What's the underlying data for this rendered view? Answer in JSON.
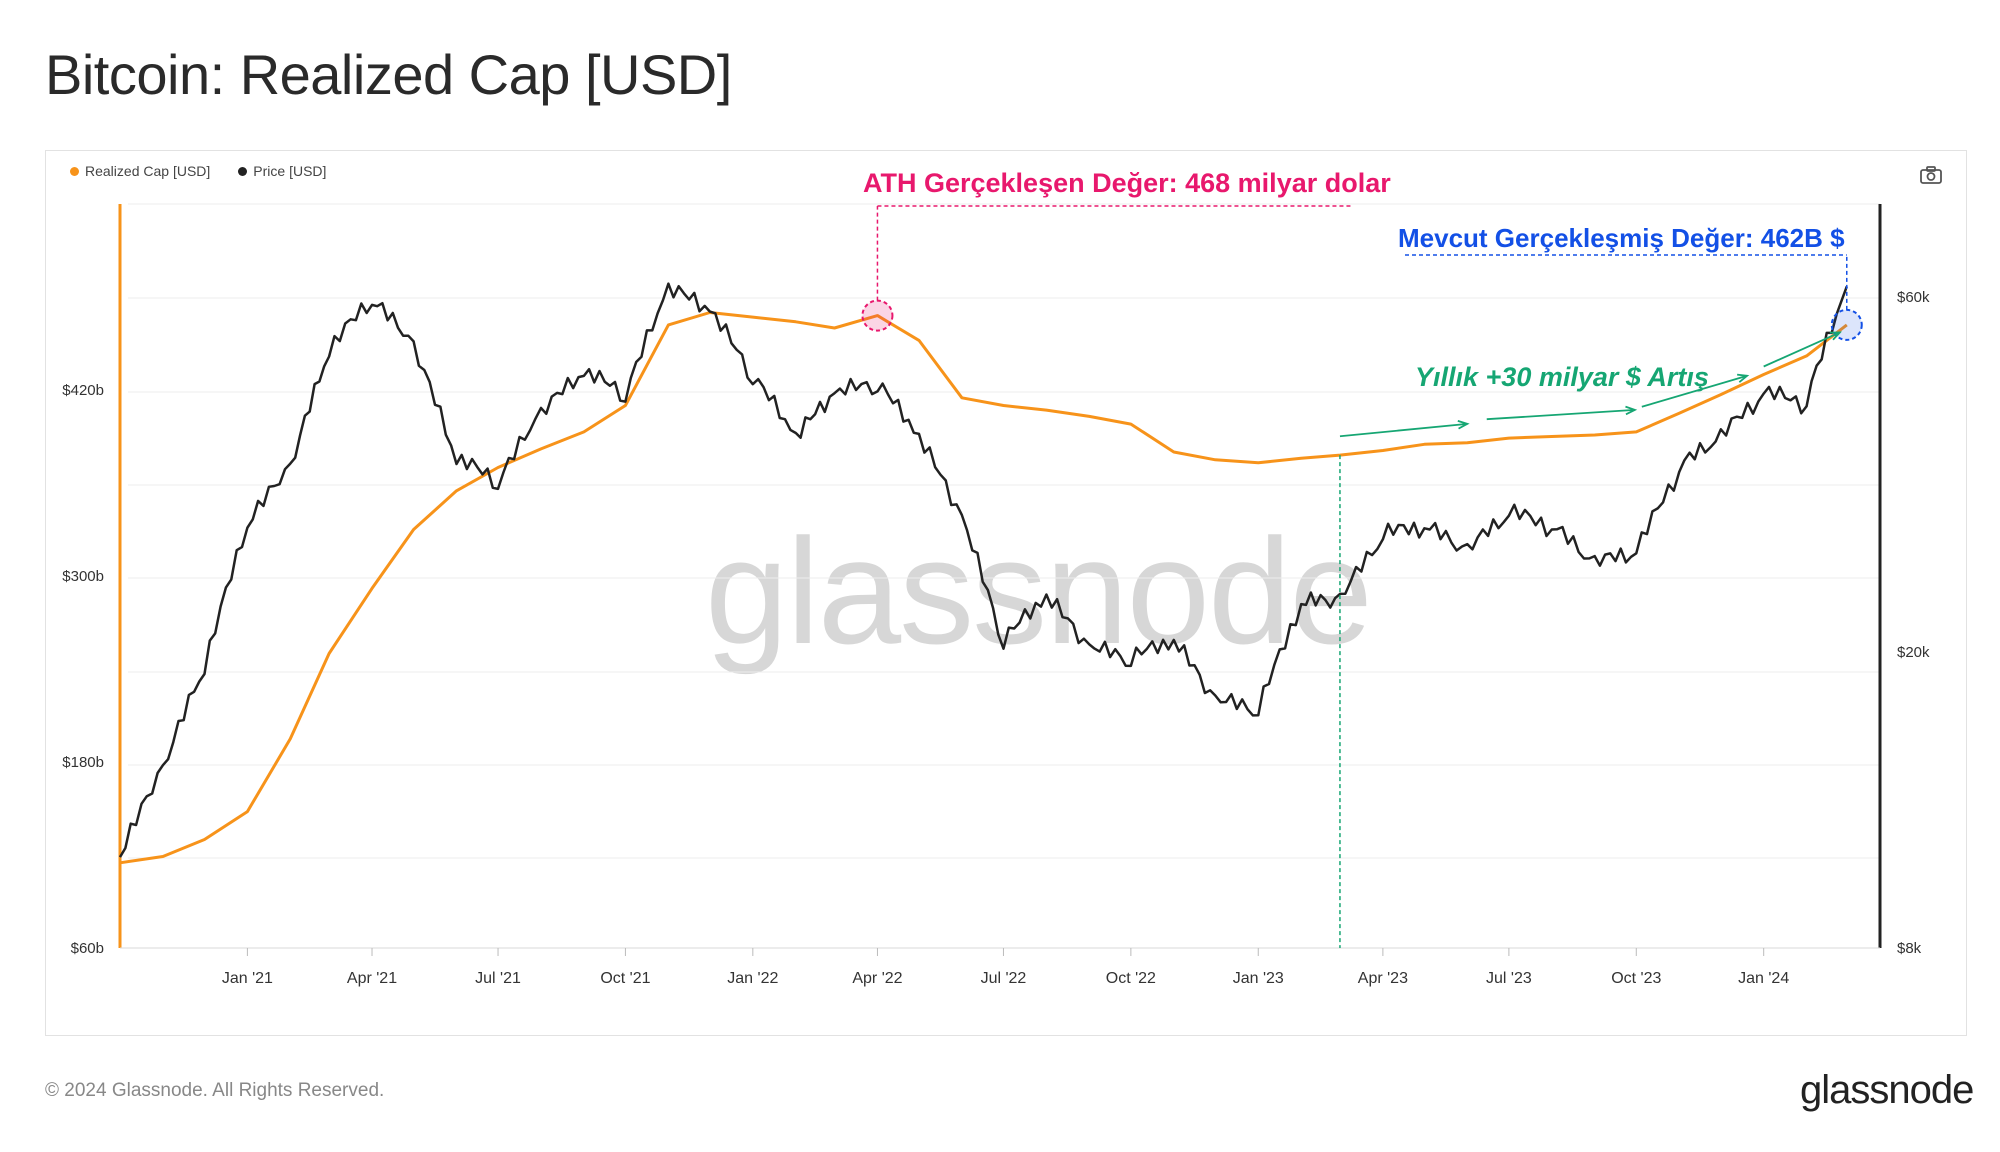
{
  "page": {
    "title": "Bitcoin: Realized Cap [USD]"
  },
  "legend": {
    "items": [
      {
        "label": "Realized Cap [USD]",
        "color": "#f7931a"
      },
      {
        "label": "Price [USD]",
        "color": "#222222"
      }
    ]
  },
  "toolbar": {
    "icon": "camera-icon"
  },
  "watermark": "glassnode",
  "annotations": {
    "ath": "ATH Gerçekleşen Değer: 468 milyar dolar",
    "current": "Mevcut Gerçekleşmiş Değer: 462B $",
    "growth": "Yıllık +30 milyar $ Artış"
  },
  "footer": {
    "copyright": "© 2024 Glassnode. All Rights Reserved.",
    "brand": "glassnode"
  },
  "colors": {
    "realized": "#f7931a",
    "price": "#222222",
    "ath": "#e8186d",
    "current": "#1350e6",
    "growth": "#16a673"
  },
  "chart_data": {
    "type": "line",
    "title": "Bitcoin: Realized Cap [USD]",
    "x_ticks": [
      "Jan '21",
      "Apr '21",
      "Jul '21",
      "Oct '21",
      "Jan '22",
      "Apr '22",
      "Jul '22",
      "Oct '22",
      "Jan '23",
      "Apr '23",
      "Jul '23",
      "Oct '23",
      "Jan '24"
    ],
    "x_tick_dates": [
      "2021-01-01",
      "2021-04-01",
      "2021-07-01",
      "2021-10-01",
      "2022-01-01",
      "2022-04-01",
      "2022-07-01",
      "2022-10-01",
      "2023-01-01",
      "2023-04-01",
      "2023-07-01",
      "2023-10-01",
      "2024-01-01"
    ],
    "x_range": [
      "2020-10-01",
      "2024-03-25"
    ],
    "left_axis": {
      "ticks": [
        "$60b",
        "$180b",
        "$300b",
        "$420b"
      ],
      "values": [
        60,
        180,
        300,
        420
      ],
      "range": [
        60,
        540
      ],
      "unit": "billion USD"
    },
    "right_axis": {
      "ticks": [
        "$8k",
        "$20k",
        "$60k"
      ],
      "values": [
        8000,
        20000,
        60000
      ],
      "range": [
        8000,
        80000
      ],
      "scale": "log"
    },
    "series": [
      {
        "name": "Realized Cap [USD]",
        "axis": "left",
        "color": "#f7931a",
        "points": [
          [
            "2020-10-01",
            115
          ],
          [
            "2020-11-01",
            119
          ],
          [
            "2020-12-01",
            130
          ],
          [
            "2021-01-01",
            148
          ],
          [
            "2021-02-01",
            195
          ],
          [
            "2021-03-01",
            250
          ],
          [
            "2021-04-01",
            292
          ],
          [
            "2021-05-01",
            330
          ],
          [
            "2021-06-01",
            355
          ],
          [
            "2021-07-01",
            370
          ],
          [
            "2021-08-01",
            382
          ],
          [
            "2021-09-01",
            393
          ],
          [
            "2021-10-01",
            410
          ],
          [
            "2021-11-01",
            462
          ],
          [
            "2021-12-01",
            470
          ],
          [
            "2022-01-01",
            467
          ],
          [
            "2022-02-01",
            464
          ],
          [
            "2022-03-01",
            460
          ],
          [
            "2022-04-01",
            468
          ],
          [
            "2022-05-01",
            452
          ],
          [
            "2022-06-01",
            415
          ],
          [
            "2022-07-01",
            410
          ],
          [
            "2022-08-01",
            407
          ],
          [
            "2022-09-01",
            403
          ],
          [
            "2022-10-01",
            398
          ],
          [
            "2022-11-01",
            380
          ],
          [
            "2022-12-01",
            375
          ],
          [
            "2023-01-01",
            373
          ],
          [
            "2023-02-01",
            376
          ],
          [
            "2023-03-01",
            378
          ],
          [
            "2023-04-01",
            381
          ],
          [
            "2023-05-01",
            385
          ],
          [
            "2023-06-01",
            386
          ],
          [
            "2023-07-01",
            389
          ],
          [
            "2023-08-01",
            390
          ],
          [
            "2023-09-01",
            391
          ],
          [
            "2023-10-01",
            393
          ],
          [
            "2023-11-01",
            405
          ],
          [
            "2023-12-01",
            417
          ],
          [
            "2024-01-01",
            430
          ],
          [
            "2024-02-01",
            442
          ],
          [
            "2024-03-01",
            462
          ]
        ]
      },
      {
        "name": "Price [USD]",
        "axis": "right",
        "color": "#222222",
        "points": [
          [
            "2020-10-01",
            10600
          ],
          [
            "2020-11-01",
            13800
          ],
          [
            "2020-12-01",
            19000
          ],
          [
            "2021-01-01",
            29500
          ],
          [
            "2021-02-01",
            35000
          ],
          [
            "2021-03-01",
            50500
          ],
          [
            "2021-04-01",
            59000
          ],
          [
            "2021-05-01",
            51000
          ],
          [
            "2021-06-01",
            36000
          ],
          [
            "2021-07-01",
            33500
          ],
          [
            "2021-08-01",
            41500
          ],
          [
            "2021-09-01",
            47000
          ],
          [
            "2021-10-01",
            44000
          ],
          [
            "2021-11-01",
            61000
          ],
          [
            "2021-12-01",
            57000
          ],
          [
            "2022-01-01",
            46500
          ],
          [
            "2022-02-01",
            38500
          ],
          [
            "2022-03-01",
            44000
          ],
          [
            "2022-04-01",
            45500
          ],
          [
            "2022-05-01",
            38500
          ],
          [
            "2022-06-01",
            30000
          ],
          [
            "2022-07-01",
            20500
          ],
          [
            "2022-08-01",
            23500
          ],
          [
            "2022-09-01",
            20000
          ],
          [
            "2022-10-01",
            19400
          ],
          [
            "2022-11-01",
            20500
          ],
          [
            "2022-12-01",
            17000
          ],
          [
            "2023-01-01",
            16600
          ],
          [
            "2023-02-01",
            23000
          ],
          [
            "2023-03-01",
            23200
          ],
          [
            "2023-04-01",
            28500
          ],
          [
            "2023-05-01",
            29200
          ],
          [
            "2023-06-01",
            27000
          ],
          [
            "2023-07-01",
            30500
          ],
          [
            "2023-08-01",
            29200
          ],
          [
            "2023-09-01",
            26000
          ],
          [
            "2023-10-01",
            27000
          ],
          [
            "2023-11-01",
            35000
          ],
          [
            "2023-12-01",
            38500
          ],
          [
            "2024-01-01",
            44000
          ],
          [
            "2024-02-01",
            43000
          ],
          [
            "2024-03-01",
            62000
          ]
        ]
      }
    ],
    "grid": true,
    "legend_position": "top-left"
  }
}
